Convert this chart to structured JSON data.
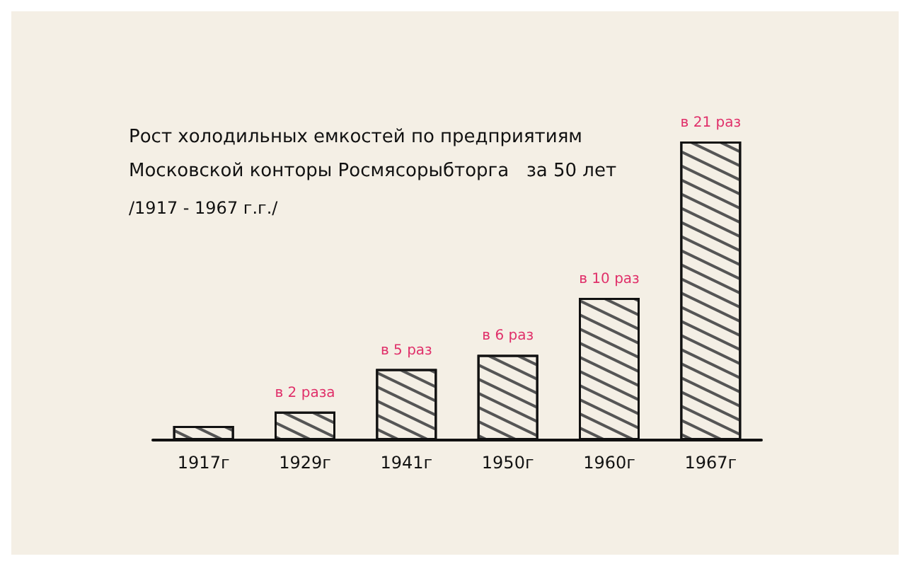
{
  "chart_data": {
    "type": "bar",
    "title": "Рост холодильных емкостей по предприятиям\nМосковской конторы Росмясорыбторга   за 50 лет",
    "subtitle": "/1917 - 1967 г.г./",
    "tick_labels": "x",
    "categories": [
      "1917г",
      "1929г",
      "1941г",
      "1950г",
      "1960г",
      "1967г"
    ],
    "values": [
      1,
      2,
      5,
      6,
      10,
      21
    ],
    "value_labels": [
      null,
      "в 2 раза",
      "в 5 раз",
      "в 6 раз",
      "в 10 раз",
      "в 21 раз"
    ],
    "color": "#f4efe5"
  }
}
